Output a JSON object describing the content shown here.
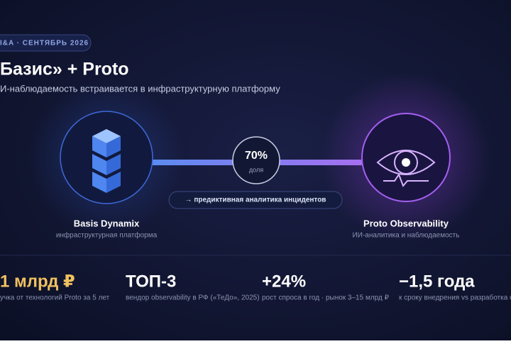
{
  "header": {
    "badge": "I&A · СЕНТЯБРЬ 2026",
    "title": "Базис» + Proto",
    "subtitle": "И-наблюдаемость встраивается в инфраструктурную платформу"
  },
  "diagram": {
    "left": {
      "name": "Basis Dynamix",
      "caption": "инфраструктурная платформа"
    },
    "right": {
      "name": "Proto Observability",
      "caption": "ИИ-аналитика и наблюдаемость"
    },
    "share": {
      "value": "70%",
      "label": "доля"
    },
    "link": "→ предиктивная аналитика инцидентов"
  },
  "stats": [
    {
      "value": "1 млрд ₽",
      "label": "учка от технологий Proto за 5 лет"
    },
    {
      "value": "ТОП-3",
      "label": "вендор observability в РФ («ТеДо», 2025)"
    },
    {
      "value": "+24%",
      "label": "рост спроса в год · рынок 3–15 млрд ₽"
    },
    {
      "value": "−1,5 года",
      "label": "к сроку внедрения vs разработка с ну"
    }
  ]
}
